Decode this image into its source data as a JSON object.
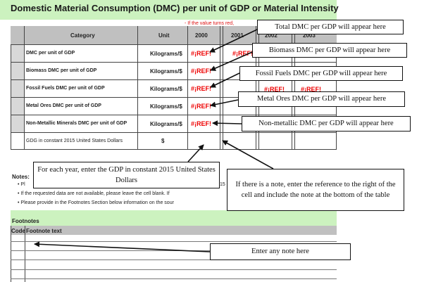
{
  "sheet": {
    "title": "Domestic Material Consumption (DMC) per unit of GDP or Material Intensity",
    "red_instruction": "- If the value turns red,",
    "columns": {
      "category": "Category",
      "unit": "Unit",
      "years": [
        "2000",
        "2001",
        "2002",
        "2003"
      ]
    },
    "rows": [
      {
        "category": "DMC per unit of GDP",
        "unit": "Kilograms/$",
        "value": "#¡REF!"
      },
      {
        "category": "Biomass DMC per unit of GDP",
        "unit": "Kilograms/$",
        "value": "#¡REF!"
      },
      {
        "category": "Fossil Fuels DMC per unit of GDP",
        "unit": "Kilograms/$",
        "value": "#¡REF!"
      },
      {
        "category": "Metal Ores DMC per unit of GDP",
        "unit": "Kilograms/$",
        "value": "#¡REF!"
      },
      {
        "category": "Non-Metallic Minerals DMC per unit of GDP",
        "unit": "Kilograms/$",
        "value": "#¡REF!"
      }
    ],
    "gdp_row": {
      "category": "GDG in constant 2015 United States Dollars",
      "unit": "$"
    },
    "notes_label": "Notes:",
    "notes": [
      "• Pl",
      "• If the requested data are not available, please leave the cell blank. If",
      "• Please provide in the Footnotes Section below information on the sour"
    ],
    "notes_fragment": "15",
    "footnotes_label": "Footnotes",
    "footnotes_columns": {
      "code": "Code",
      "text": "Footnote text"
    }
  },
  "callouts": {
    "total": "Total DMC per GDP will appear here",
    "biomass": "Biomass DMC per GDP will appear here",
    "fossil": "Fossil Fuels DMC per GDP will appear here",
    "metal": "Metal Ores DMC per GDP will appear here",
    "nonmetallic": "Non-metallic DMC per GDP will appear here",
    "gdp": "For each year, enter the GDP in constant 2015 United States Dollars",
    "note_ref": "If there is a note, enter the reference to the right of the cell and include the note at the bottom of the table",
    "footnote": "Enter any note here"
  }
}
